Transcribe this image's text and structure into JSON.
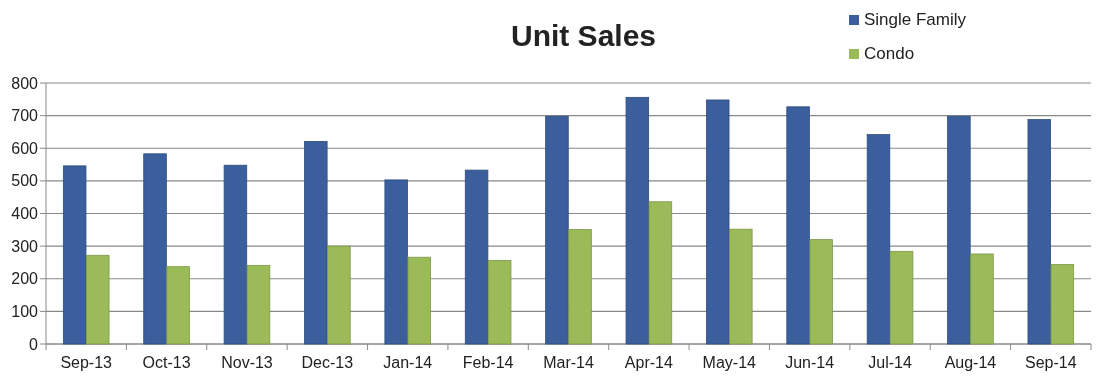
{
  "chart_data": {
    "type": "bar",
    "title": "Unit Sales",
    "categories": [
      "Sep-13",
      "Oct-13",
      "Nov-13",
      "Dec-13",
      "Jan-14",
      "Feb-14",
      "Mar-14",
      "Apr-14",
      "May-14",
      "Jun-14",
      "Jul-14",
      "Aug-14",
      "Sep-14"
    ],
    "series": [
      {
        "name": "Single Family",
        "color": "#3a5f9c",
        "values": [
          546,
          583,
          548,
          621,
          503,
          533,
          698,
          756,
          748,
          727,
          642,
          698,
          688
        ]
      },
      {
        "name": "Condo",
        "color": "#9bbb59",
        "values": [
          272,
          237,
          241,
          300,
          266,
          256,
          351,
          436,
          352,
          320,
          284,
          276,
          244
        ]
      }
    ],
    "ylim": [
      0,
      800
    ],
    "yticks": [
      0,
      100,
      200,
      300,
      400,
      500,
      600,
      700,
      800
    ],
    "grid": "y",
    "legend": "top right"
  }
}
